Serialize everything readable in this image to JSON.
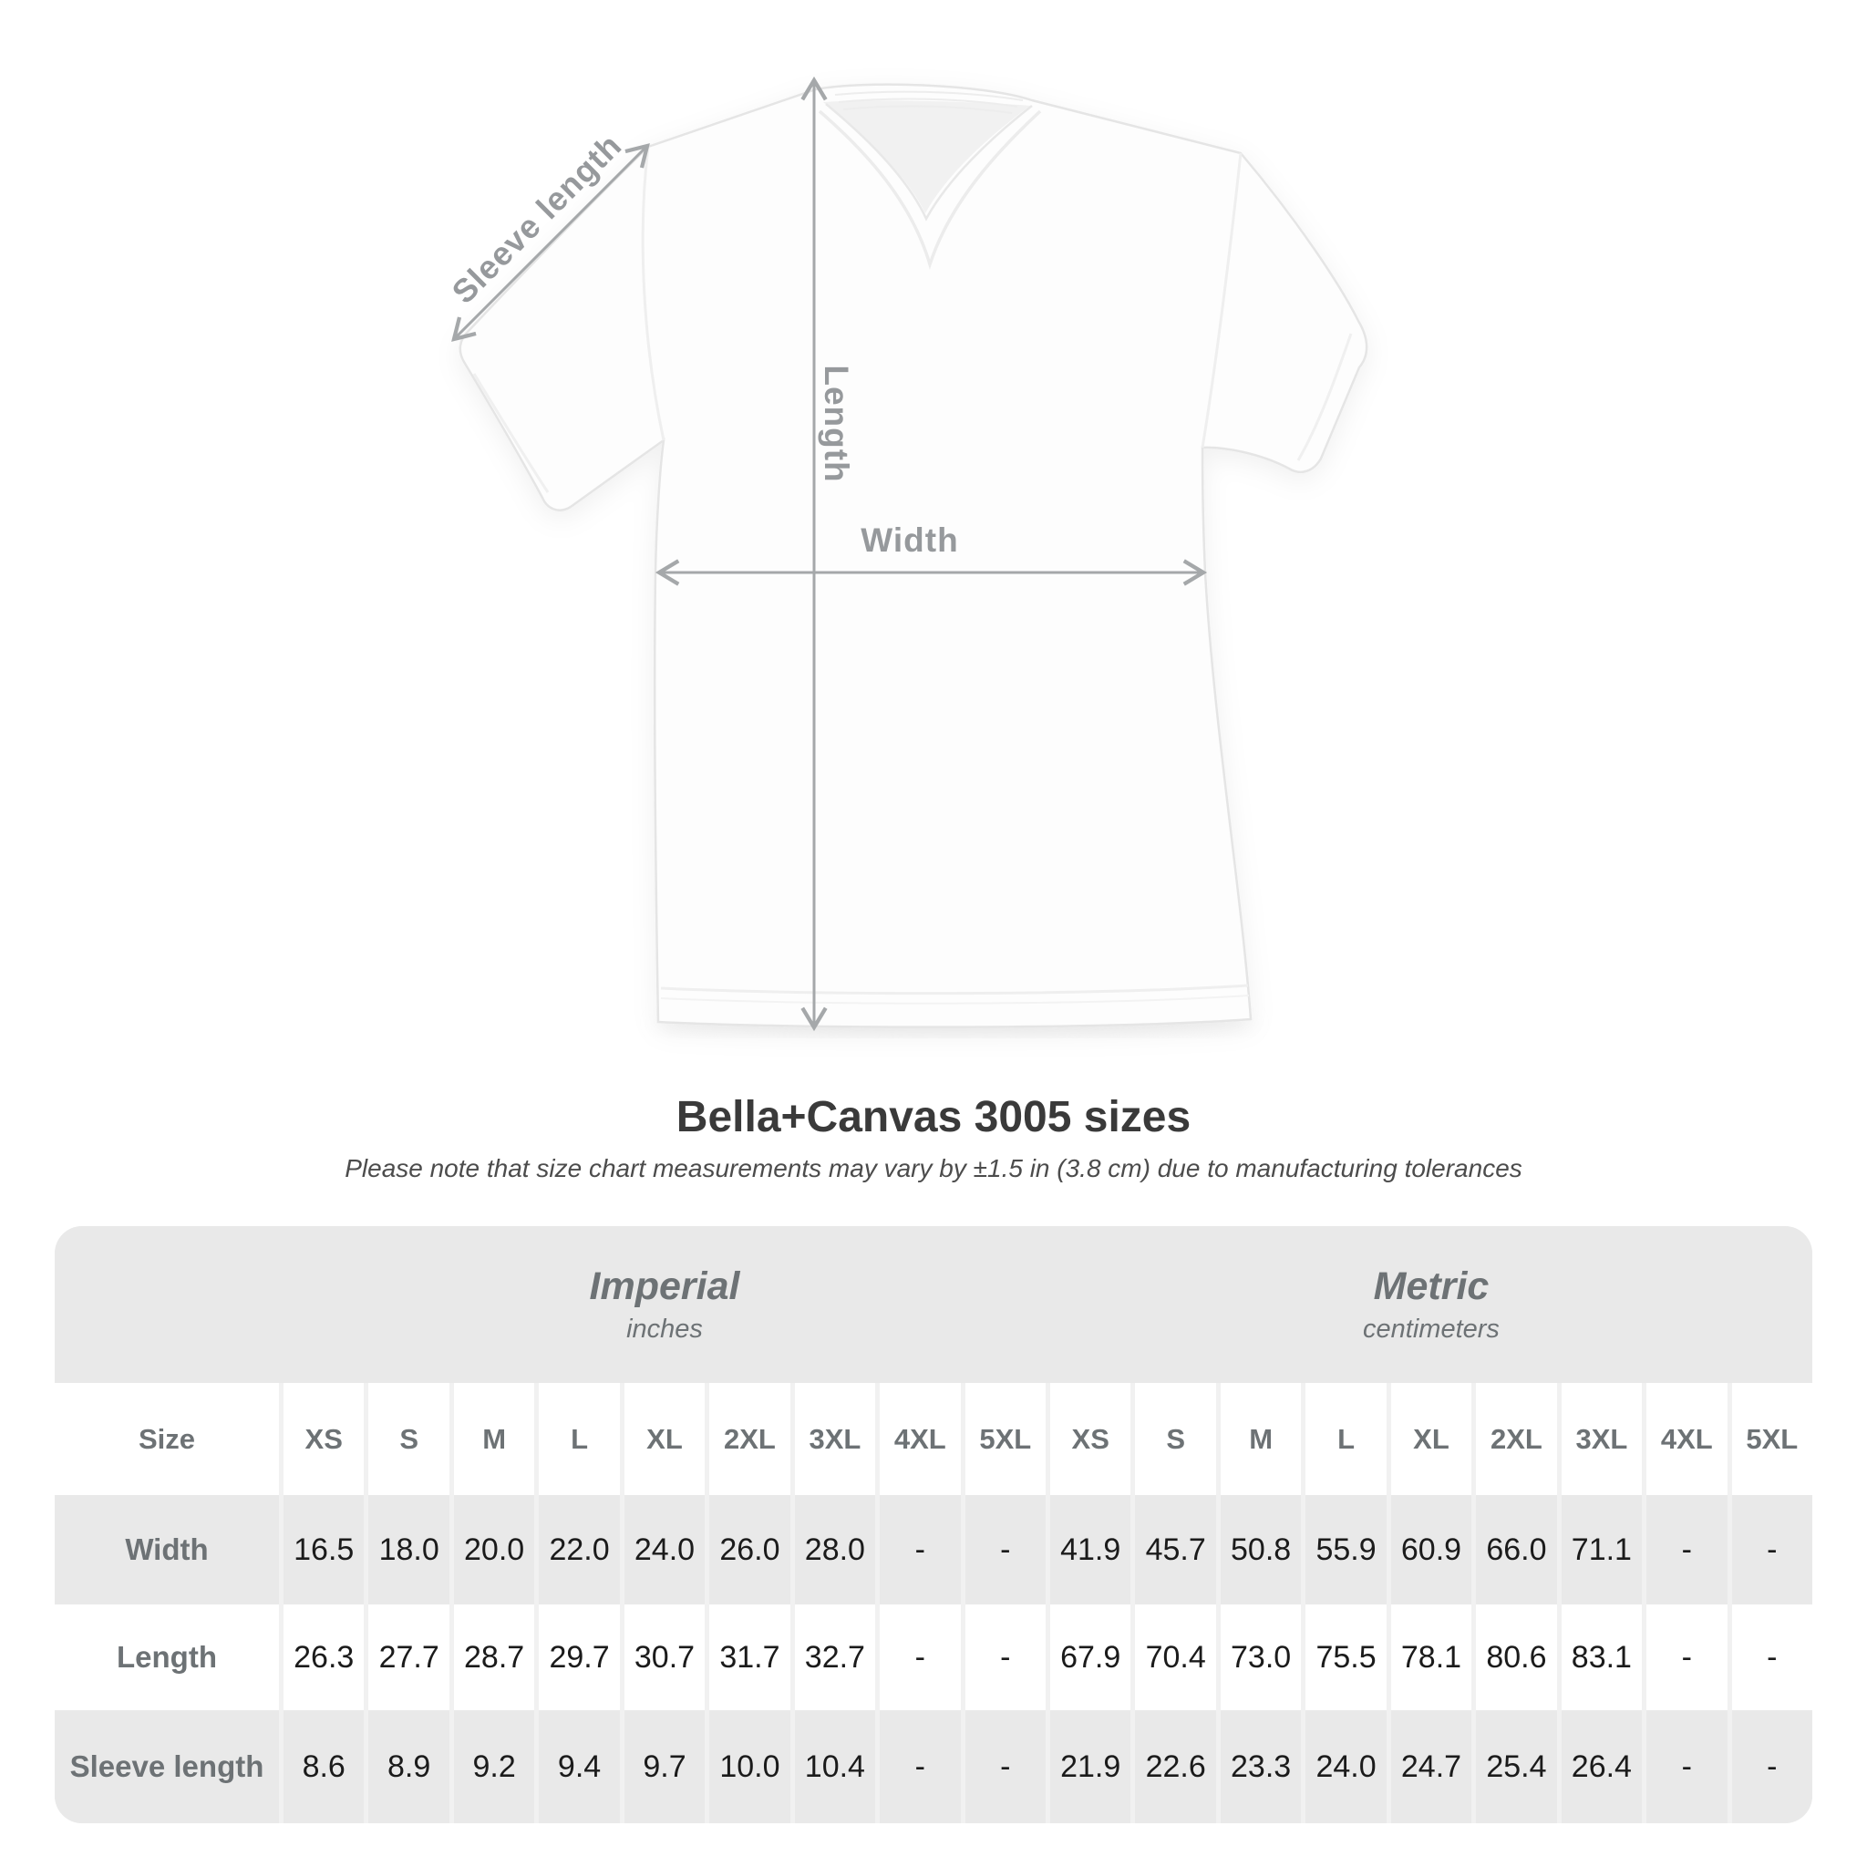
{
  "title": "Bella+Canvas 3005 sizes",
  "subtitle": "Please note that size chart measurements may vary by ±1.5 in (3.8 cm) due to manufacturing tolerances",
  "diagram": {
    "labels": {
      "sleeve_length": "Sleeve length",
      "length": "Length",
      "width": "Width"
    }
  },
  "table": {
    "size_header": "Size",
    "groups": [
      {
        "label": "Imperial",
        "unit": "inches"
      },
      {
        "label": "Metric",
        "unit": "centimeters"
      }
    ],
    "sizes": [
      "XS",
      "S",
      "M",
      "L",
      "XL",
      "2XL",
      "3XL",
      "4XL",
      "5XL"
    ],
    "rows": [
      {
        "label": "Width",
        "imperial": [
          "16.5",
          "18.0",
          "20.0",
          "22.0",
          "24.0",
          "26.0",
          "28.0",
          "-",
          "-"
        ],
        "metric": [
          "41.9",
          "45.7",
          "50.8",
          "55.9",
          "60.9",
          "66.0",
          "71.1",
          "-",
          "-"
        ]
      },
      {
        "label": "Length",
        "imperial": [
          "26.3",
          "27.7",
          "28.7",
          "29.7",
          "30.7",
          "31.7",
          "32.7",
          "-",
          "-"
        ],
        "metric": [
          "67.9",
          "70.4",
          "73.0",
          "75.5",
          "78.1",
          "80.6",
          "83.1",
          "-",
          "-"
        ]
      },
      {
        "label": "Sleeve length",
        "imperial": [
          "8.6",
          "8.9",
          "9.2",
          "9.4",
          "9.7",
          "10.0",
          "10.4",
          "-",
          "-"
        ],
        "metric": [
          "21.9",
          "22.6",
          "23.3",
          "24.0",
          "24.7",
          "25.4",
          "26.4",
          "-",
          "-"
        ]
      }
    ]
  },
  "chart_data": {
    "type": "table",
    "title": "Bella+Canvas 3005 sizes",
    "note": "Please note that size chart measurements may vary by ±1.5 in (3.8 cm) due to manufacturing tolerances",
    "column_groups": [
      "Imperial (inches)",
      "Metric (centimeters)"
    ],
    "sizes": [
      "XS",
      "S",
      "M",
      "L",
      "XL",
      "2XL",
      "3XL",
      "4XL",
      "5XL"
    ],
    "measurements": [
      {
        "name": "Width",
        "imperial_in": [
          16.5,
          18.0,
          20.0,
          22.0,
          24.0,
          26.0,
          28.0,
          null,
          null
        ],
        "metric_cm": [
          41.9,
          45.7,
          50.8,
          55.9,
          60.9,
          66.0,
          71.1,
          null,
          null
        ]
      },
      {
        "name": "Length",
        "imperial_in": [
          26.3,
          27.7,
          28.7,
          29.7,
          30.7,
          31.7,
          32.7,
          null,
          null
        ],
        "metric_cm": [
          67.9,
          70.4,
          73.0,
          75.5,
          78.1,
          80.6,
          83.1,
          null,
          null
        ]
      },
      {
        "name": "Sleeve length",
        "imperial_in": [
          8.6,
          8.9,
          9.2,
          9.4,
          9.7,
          10.0,
          10.4,
          null,
          null
        ],
        "metric_cm": [
          21.9,
          22.6,
          23.3,
          24.0,
          24.7,
          25.4,
          26.4,
          null,
          null
        ]
      }
    ]
  },
  "colors": {
    "annotation_text": "#96999c",
    "annotation_arrow": "#a5a8aa",
    "table_label_text": "#6d7275",
    "value_text": "#1b1b1b",
    "row_gray": "#e9e9e9",
    "title_text": "#3a3a3a"
  }
}
